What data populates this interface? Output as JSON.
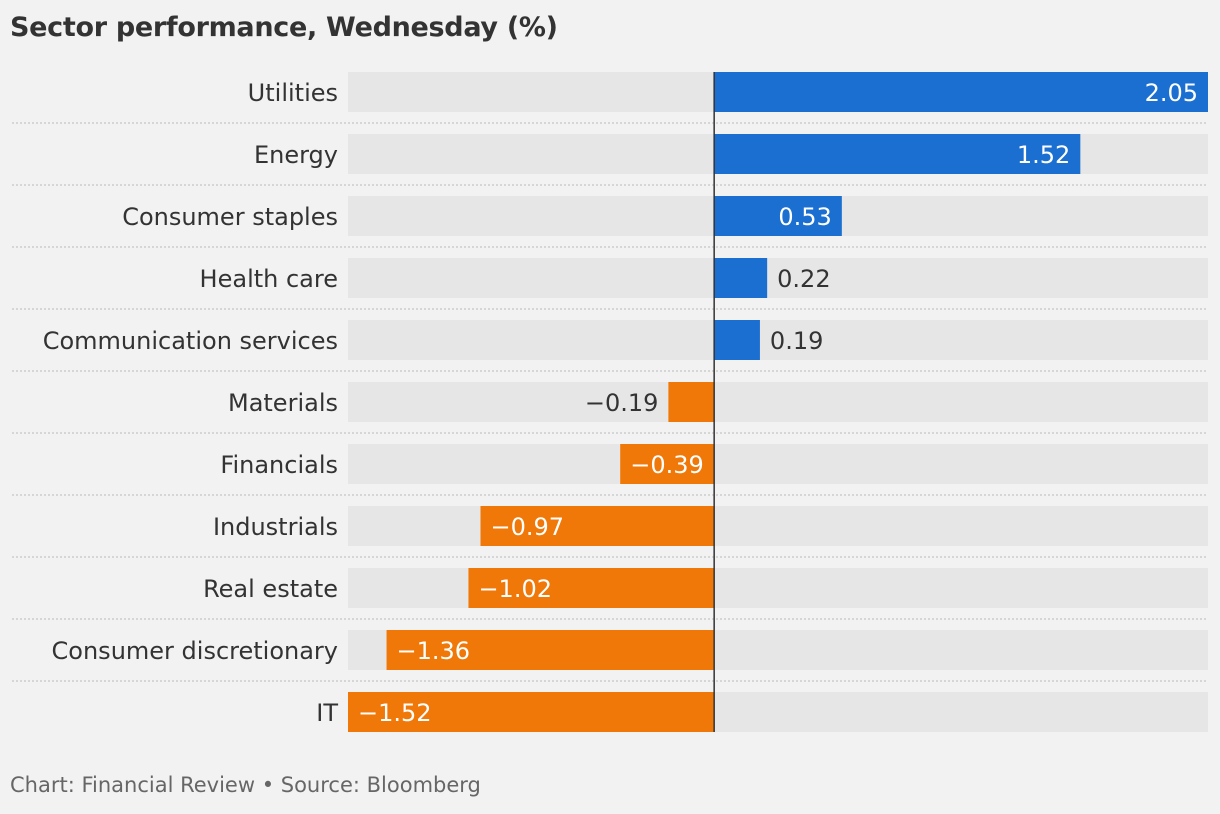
{
  "title": "Sector performance, Wednesday (%)",
  "footer": {
    "credit": "Chart: Financial Review • Source: Bloomberg"
  },
  "colors": {
    "positive": "#1a6fd1",
    "negative": "#f07808",
    "track": "#e6e6e6",
    "zero_line": "#333333",
    "label_inside": "#ffffff",
    "label_outside": "#333333",
    "separator": "#bbbbbb"
  },
  "chart_data": {
    "type": "bar",
    "orientation": "horizontal",
    "title": "Sector performance, Wednesday (%)",
    "xlim": [
      -1.52,
      2.05
    ],
    "grid": false,
    "categories": [
      "Utilities",
      "Energy",
      "Consumer staples",
      "Health care",
      "Communication services",
      "Materials",
      "Financials",
      "Industrials",
      "Real estate",
      "Consumer discretionary",
      "IT"
    ],
    "values": [
      2.05,
      1.52,
      0.53,
      0.22,
      0.19,
      -0.19,
      -0.39,
      -0.97,
      -1.02,
      -1.36,
      -1.52
    ],
    "value_labels": [
      "2.05",
      "1.52",
      "0.53",
      "0.22",
      "0.19",
      "−0.19",
      "−0.39",
      "−0.97",
      "−1.02",
      "−1.36",
      "−1.52"
    ]
  }
}
